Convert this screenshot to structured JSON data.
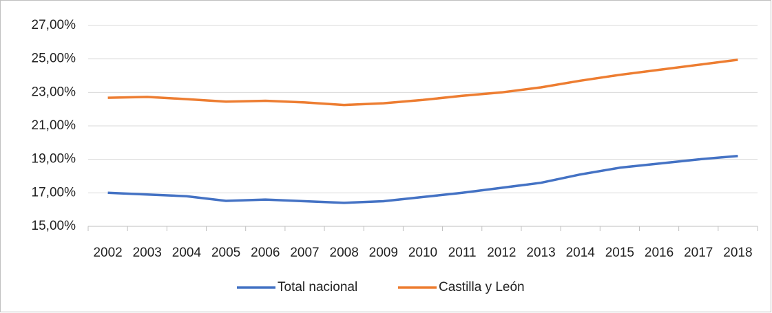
{
  "chart_data": {
    "type": "line",
    "categories": [
      "2002",
      "2003",
      "2004",
      "2005",
      "2006",
      "2007",
      "2008",
      "2009",
      "2010",
      "2011",
      "2012",
      "2013",
      "2014",
      "2015",
      "2016",
      "2017",
      "2018"
    ],
    "series": [
      {
        "name": "Total nacional",
        "color": "#4472c4",
        "values": [
          17.0,
          16.9,
          16.8,
          16.52,
          16.6,
          16.5,
          16.4,
          16.5,
          16.75,
          17.0,
          17.3,
          17.6,
          18.1,
          18.5,
          18.75,
          19.0,
          19.2
        ]
      },
      {
        "name": "Castilla y León",
        "color": "#ed7d31",
        "values": [
          22.68,
          22.73,
          22.6,
          22.45,
          22.5,
          22.4,
          22.25,
          22.35,
          22.55,
          22.8,
          23.0,
          23.3,
          23.7,
          24.05,
          24.35,
          24.65,
          24.95
        ]
      }
    ],
    "ylim": [
      15,
      27
    ],
    "yticks": [
      {
        "value": 15,
        "label": "15,00%"
      },
      {
        "value": 17,
        "label": "17,00%"
      },
      {
        "value": 19,
        "label": "19,00%"
      },
      {
        "value": 21,
        "label": "21,00%"
      },
      {
        "value": 23,
        "label": "23,00%"
      },
      {
        "value": 25,
        "label": "25,00%"
      },
      {
        "value": 27,
        "label": "27,00%"
      }
    ],
    "grid": true,
    "legend": "bottom"
  }
}
